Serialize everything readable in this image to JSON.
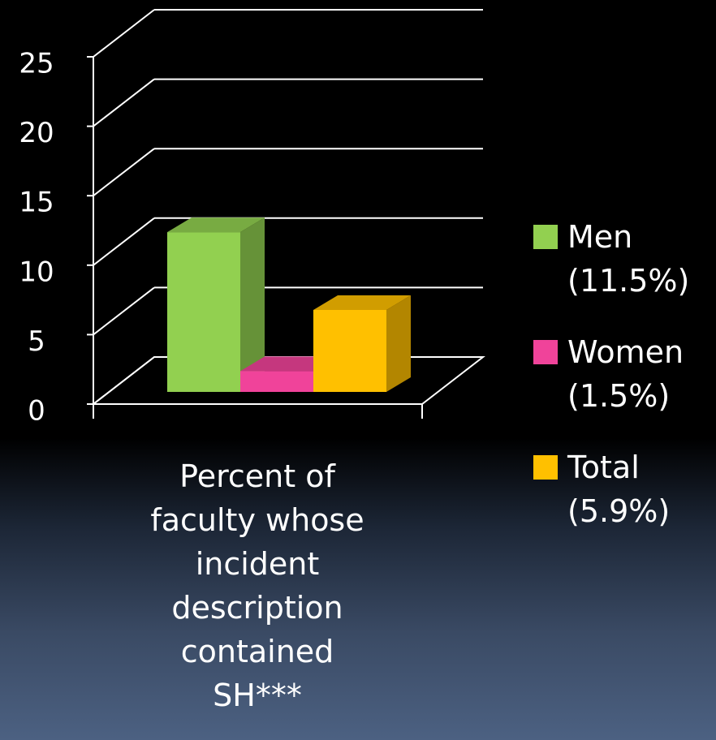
{
  "chart_data": {
    "type": "bar",
    "categories": [
      "Percent of faculty whose incident description contained SH***"
    ],
    "series": [
      {
        "name": "Men (11.5%)",
        "color": "#92d050",
        "values": [
          11.5
        ]
      },
      {
        "name": "Women (1.5%)",
        "color": "#f0439a",
        "values": [
          1.5
        ]
      },
      {
        "name": "Total (5.9%)",
        "color": "#ffc000",
        "values": [
          5.9
        ]
      }
    ],
    "ylim": [
      0,
      25
    ],
    "yticks": [
      0,
      5,
      10,
      15,
      20,
      25
    ],
    "grid": true,
    "legend": "right"
  }
}
